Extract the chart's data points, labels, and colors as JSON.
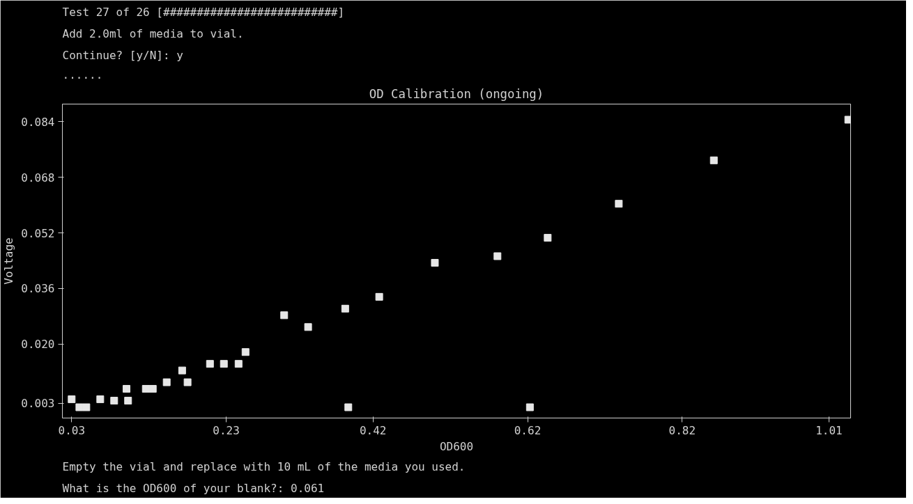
{
  "chart_data": {
    "type": "scatter",
    "title": "OD Calibration (ongoing)",
    "xlabel": "OD600",
    "ylabel": "Voltage",
    "annotations": [
      "Test 27 of 26 [##########################]",
      "Add 2.0ml of media to vial.",
      "Continue? [y/N]: y",
      "......",
      "Empty the vial and replace with 10 mL of the media you used.",
      "What is the OD600 of your blank?: 0.061"
    ],
    "x": [
      1.035,
      0.861,
      0.738,
      0.646,
      0.581,
      0.5,
      0.428,
      0.384,
      0.305,
      0.336,
      0.255,
      0.246,
      0.227,
      0.209,
      0.173,
      0.18,
      0.153,
      0.135,
      0.126,
      0.101,
      0.103,
      0.085,
      0.067,
      0.03,
      0.04,
      0.049,
      0.388,
      0.623
    ],
    "series": [
      {
        "color": "#e6e6e6",
        "values": [
          0.0846,
          0.0729,
          0.0604,
          0.0506,
          0.0453,
          0.0434,
          0.0336,
          0.0302,
          0.0283,
          0.0249,
          0.0177,
          0.0143,
          0.0143,
          0.0143,
          0.0124,
          0.009,
          0.009,
          0.0071,
          0.0071,
          0.0071,
          0.0037,
          0.0037,
          0.0041,
          0.0041,
          0.0018,
          0.0018,
          0.0018,
          0.0018
        ]
      }
    ],
    "xlim": [
      0.018,
      1.038
    ],
    "ylim": [
      -0.0013,
      0.0891
    ],
    "xticks": [
      0.03,
      0.23,
      0.42,
      0.62,
      0.82,
      1.01
    ],
    "yticks": [
      0.003,
      {
        "value": 0.02,
        "label": "0.020"
      },
      0.036,
      0.052,
      0.068,
      0.084
    ],
    "marker": "square",
    "grid": false
  }
}
